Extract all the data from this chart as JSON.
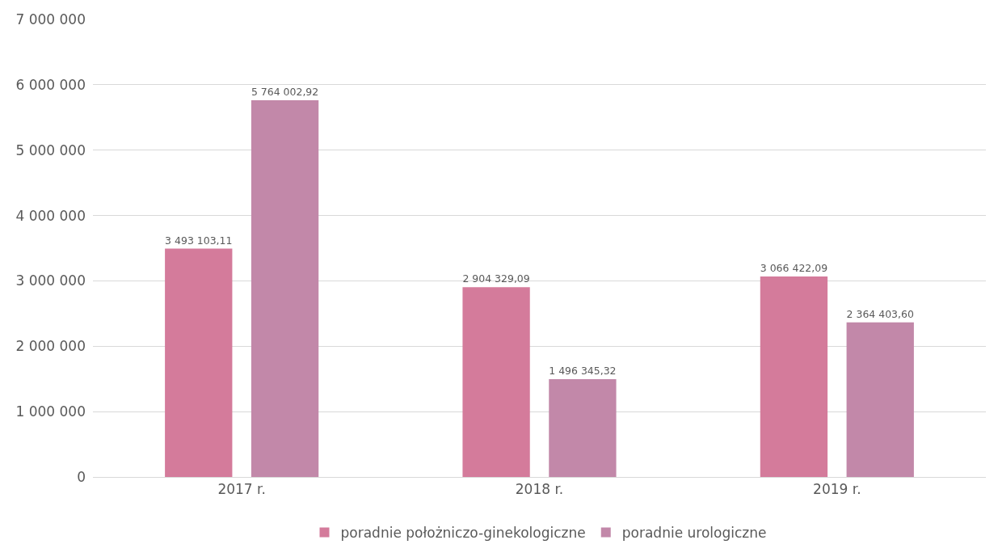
{
  "chart_data": {
    "type": "bar",
    "categories": [
      "2017 r.",
      "2018 r.",
      "2019 r."
    ],
    "series": [
      {
        "name": "poradnie położniczo-ginekologiczne",
        "color": "#d47b9b",
        "values": [
          3493103.11,
          2904329.09,
          3066422.09
        ],
        "value_labels": [
          "3 493 103,11",
          "2 904 329,09",
          "3 066 422,09"
        ]
      },
      {
        "name": "poradnie urologiczne",
        "color": "#c288a9",
        "values": [
          5764002.92,
          1496345.32,
          2364403.6
        ],
        "value_labels": [
          "5 764 002,92",
          "1 496 345,32",
          "2 364 403,60"
        ]
      }
    ],
    "ylim": [
      0,
      7000000
    ],
    "yticks": [
      0,
      {
        "value": 1000000,
        "label": "1 000 000"
      },
      {
        "value": 2000000,
        "label": "2 000 000"
      },
      {
        "value": 3000000,
        "label": "3 000 000"
      },
      {
        "value": 4000000,
        "label": "4 000 000"
      },
      {
        "value": 5000000,
        "label": "5 000 000"
      },
      {
        "value": 6000000,
        "label": "6 000 000"
      },
      {
        "value": 7000000,
        "label": "7 000 000"
      }
    ],
    "grid": "y",
    "legend": "bottom"
  }
}
